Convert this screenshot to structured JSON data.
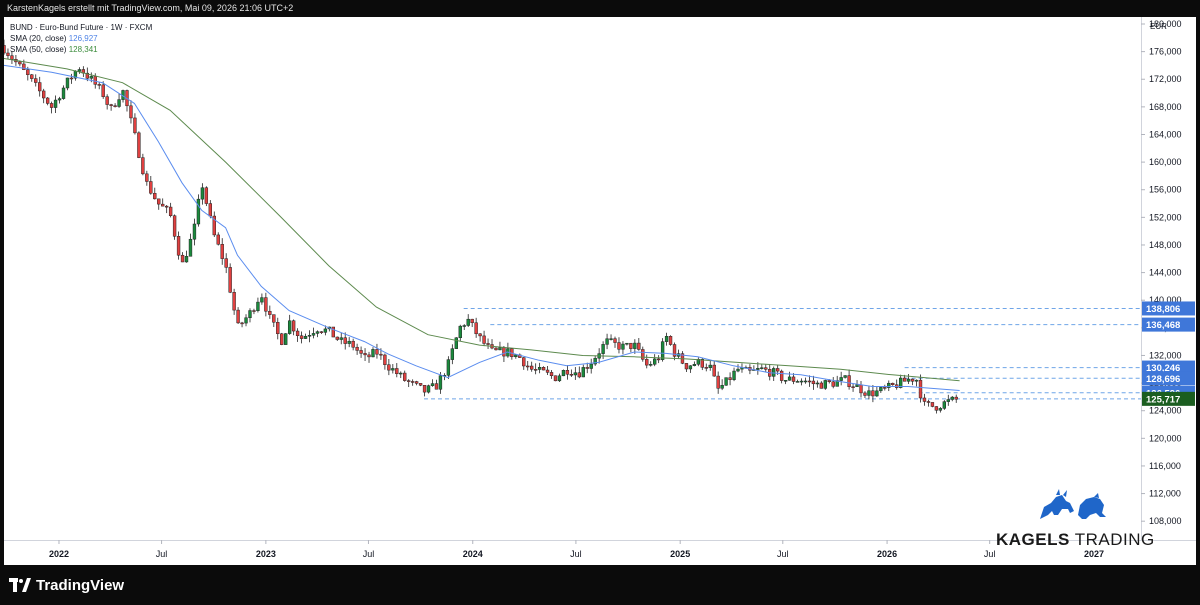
{
  "header": {
    "attribution": "KarstenKagels erstellt mit TradingView.com, Mai 09, 2026 21:06 UTC+2"
  },
  "legend": {
    "symbol": "BUND · Euro-Bund Future · 1W · FXCM",
    "sma20_label": "SMA (20, close)",
    "sma20_value": "126,927",
    "sma50_label": "SMA (50, close)",
    "sma50_value": "128,341"
  },
  "brand": {
    "name_bold": "KAGELS",
    "name_regular": "TRADING"
  },
  "footer": {
    "logo_text": "TradingView"
  },
  "colors": {
    "up": "#26a69a",
    "up_fill": "#1a8a3c",
    "down": "#e04040",
    "sma20": "#5b8def",
    "sma50": "#5d8a4e",
    "level_line": "#6fa5e8",
    "price_tag_current": "#1b5e20",
    "price_tag_level": "#3f77d9"
  },
  "chart_data": {
    "type": "candlestick",
    "title": "BUND · Euro-Bund Future · 1W · FXCM",
    "currency": "EUR",
    "ylim": [
      105000,
      182000
    ],
    "y_ticks": [
      "180,000",
      "176,000",
      "172,000",
      "168,000",
      "164,000",
      "160,000",
      "156,000",
      "152,000",
      "148,000",
      "144,000",
      "140,000",
      "136,000",
      "132,000",
      "128,000",
      "124,000",
      "120,000",
      "116,000",
      "112,000",
      "108,000"
    ],
    "x_ticks": [
      {
        "label": "2022",
        "date": "2022-01-01"
      },
      {
        "label": "Jul",
        "date": "2022-07-01"
      },
      {
        "label": "2023",
        "date": "2023-01-01"
      },
      {
        "label": "Jul",
        "date": "2023-07-01"
      },
      {
        "label": "2024",
        "date": "2024-01-01"
      },
      {
        "label": "Jul",
        "date": "2024-07-01"
      },
      {
        "label": "2025",
        "date": "2025-01-01"
      },
      {
        "label": "Jul",
        "date": "2025-07-01"
      },
      {
        "label": "2026",
        "date": "2026-01-01"
      },
      {
        "label": "Jul",
        "date": "2026-07-01"
      },
      {
        "label": "2027",
        "date": "2027-01-01"
      }
    ],
    "x_start": "2021-09-26",
    "x_end": "2027-03-25",
    "close_path": [
      [
        "2021-09-26",
        176.5
      ],
      [
        "2021-11-06",
        172.5
      ],
      [
        "2021-12-19",
        168.0
      ],
      [
        "2022-01-15",
        171.5
      ],
      [
        "2022-02-05",
        173.8
      ],
      [
        "2022-02-26",
        172.0
      ],
      [
        "2022-03-19",
        170.0
      ],
      [
        "2022-04-02",
        167.5
      ],
      [
        "2022-04-23",
        170.5
      ],
      [
        "2022-05-14",
        164.0
      ],
      [
        "2022-06-04",
        157.0
      ],
      [
        "2022-06-25",
        154.0
      ],
      [
        "2022-07-16",
        152.5
      ],
      [
        "2022-08-06",
        145.0
      ],
      [
        "2022-08-27",
        150.0
      ],
      [
        "2022-09-10",
        157.0
      ],
      [
        "2022-10-01",
        149.5
      ],
      [
        "2022-10-22",
        145.0
      ],
      [
        "2022-11-12",
        136.0
      ],
      [
        "2022-12-03",
        138.0
      ],
      [
        "2022-12-24",
        141.0
      ],
      [
        "2023-01-07",
        137.5
      ],
      [
        "2023-01-28",
        134.0
      ],
      [
        "2023-02-11",
        137.0
      ],
      [
        "2023-03-04",
        134.5
      ],
      [
        "2023-04-01",
        136.0
      ],
      [
        "2023-04-22",
        135.5
      ],
      [
        "2023-05-13",
        134.0
      ],
      [
        "2023-06-03",
        133.5
      ],
      [
        "2023-06-24",
        131.5
      ],
      [
        "2023-07-15",
        132.5
      ],
      [
        "2023-08-05",
        130.5
      ],
      [
        "2023-09-02",
        128.5
      ],
      [
        "2023-10-07",
        126.8
      ],
      [
        "2023-10-28",
        127.5
      ],
      [
        "2023-11-18",
        130.5
      ],
      [
        "2023-12-09",
        136.0
      ],
      [
        "2023-12-23",
        137.2
      ],
      [
        "2024-01-13",
        134.5
      ],
      [
        "2024-02-03",
        132.5
      ],
      [
        "2024-03-02",
        132.5
      ],
      [
        "2024-03-23",
        131.8
      ],
      [
        "2024-04-13",
        130.0
      ],
      [
        "2024-05-04",
        129.5
      ],
      [
        "2024-05-25",
        128.8
      ],
      [
        "2024-06-15",
        130.0
      ],
      [
        "2024-07-06",
        129.5
      ],
      [
        "2024-07-27",
        131.0
      ],
      [
        "2024-08-24",
        134.0
      ],
      [
        "2024-09-21",
        133.2
      ],
      [
        "2024-10-12",
        133.5
      ],
      [
        "2024-11-02",
        130.5
      ],
      [
        "2024-11-23",
        131.5
      ],
      [
        "2024-12-07",
        134.8
      ],
      [
        "2024-12-21",
        132.5
      ],
      [
        "2025-01-11",
        130.5
      ],
      [
        "2025-02-01",
        131.0
      ],
      [
        "2025-02-22",
        130.5
      ],
      [
        "2025-03-08",
        127.0
      ],
      [
        "2025-03-22",
        128.0
      ],
      [
        "2025-04-12",
        130.0
      ],
      [
        "2025-05-03",
        129.5
      ],
      [
        "2025-05-24",
        130.0
      ],
      [
        "2025-06-14",
        129.5
      ],
      [
        "2025-07-05",
        128.5
      ],
      [
        "2025-08-02",
        128.5
      ],
      [
        "2025-08-30",
        127.8
      ],
      [
        "2025-09-27",
        128.0
      ],
      [
        "2025-10-18",
        128.5
      ],
      [
        "2025-11-08",
        127.5
      ],
      [
        "2025-11-29",
        126.5
      ],
      [
        "2025-12-20",
        126.8
      ],
      [
        "2026-01-10",
        127.5
      ],
      [
        "2026-02-07",
        128.5
      ],
      [
        "2026-02-21",
        128.8
      ],
      [
        "2026-03-07",
        124.8
      ],
      [
        "2026-03-28",
        124.6
      ],
      [
        "2026-04-18",
        125.3
      ],
      [
        "2026-05-09",
        125.717
      ]
    ],
    "sma20_path": [
      [
        "2021-09-26",
        174.0
      ],
      [
        "2021-12-19",
        173.0
      ],
      [
        "2022-03-19",
        171.5
      ],
      [
        "2022-05-14",
        168.5
      ],
      [
        "2022-06-25",
        163.0
      ],
      [
        "2022-08-06",
        157.0
      ],
      [
        "2022-09-10",
        153.0
      ],
      [
        "2022-10-22",
        150.5
      ],
      [
        "2022-11-12",
        146.5
      ],
      [
        "2022-12-24",
        142.0
      ],
      [
        "2023-02-11",
        138.5
      ],
      [
        "2023-04-22",
        136.0
      ],
      [
        "2023-06-24",
        134.0
      ],
      [
        "2023-08-05",
        132.2
      ],
      [
        "2023-09-23",
        130.5
      ],
      [
        "2023-11-18",
        128.8
      ],
      [
        "2024-01-13",
        131.0
      ],
      [
        "2024-03-02",
        132.5
      ],
      [
        "2024-04-27",
        131.3
      ],
      [
        "2024-06-15",
        130.5
      ],
      [
        "2024-08-10",
        131.0
      ],
      [
        "2024-10-12",
        132.5
      ],
      [
        "2024-12-07",
        132.3
      ],
      [
        "2025-02-01",
        131.8
      ],
      [
        "2025-04-05",
        130.5
      ],
      [
        "2025-06-07",
        129.5
      ],
      [
        "2025-08-02",
        129.2
      ],
      [
        "2025-10-04",
        128.3
      ],
      [
        "2025-12-06",
        127.5
      ],
      [
        "2026-02-07",
        127.5
      ],
      [
        "2026-05-09",
        126.927
      ]
    ],
    "sma50_path": [
      [
        "2021-09-26",
        175.0
      ],
      [
        "2022-01-15",
        173.5
      ],
      [
        "2022-04-23",
        171.5
      ],
      [
        "2022-07-16",
        167.5
      ],
      [
        "2022-10-22",
        160.0
      ],
      [
        "2023-01-28",
        152.0
      ],
      [
        "2023-04-22",
        145.0
      ],
      [
        "2023-07-15",
        139.0
      ],
      [
        "2023-10-14",
        135.0
      ],
      [
        "2024-01-13",
        133.5
      ],
      [
        "2024-04-13",
        132.8
      ],
      [
        "2024-07-13",
        132.0
      ],
      [
        "2024-10-12",
        131.8
      ],
      [
        "2025-01-11",
        131.5
      ],
      [
        "2025-04-12",
        131.0
      ],
      [
        "2025-07-12",
        130.5
      ],
      [
        "2025-10-11",
        130.0
      ],
      [
        "2026-01-10",
        129.2
      ],
      [
        "2026-05-09",
        128.341
      ]
    ],
    "levels": [
      "138,806",
      "136,468",
      "130,246",
      "128,696",
      "126,596",
      "125,717"
    ],
    "level_values": [
      138.806,
      136.468,
      130.246,
      128.696,
      126.596,
      125.717
    ],
    "level_starts": [
      "2023-12-16",
      "2024-02-01",
      "2026-02-01",
      "2026-02-01",
      "2026-02-01",
      "2023-10-07"
    ],
    "current_price": "125,717"
  }
}
